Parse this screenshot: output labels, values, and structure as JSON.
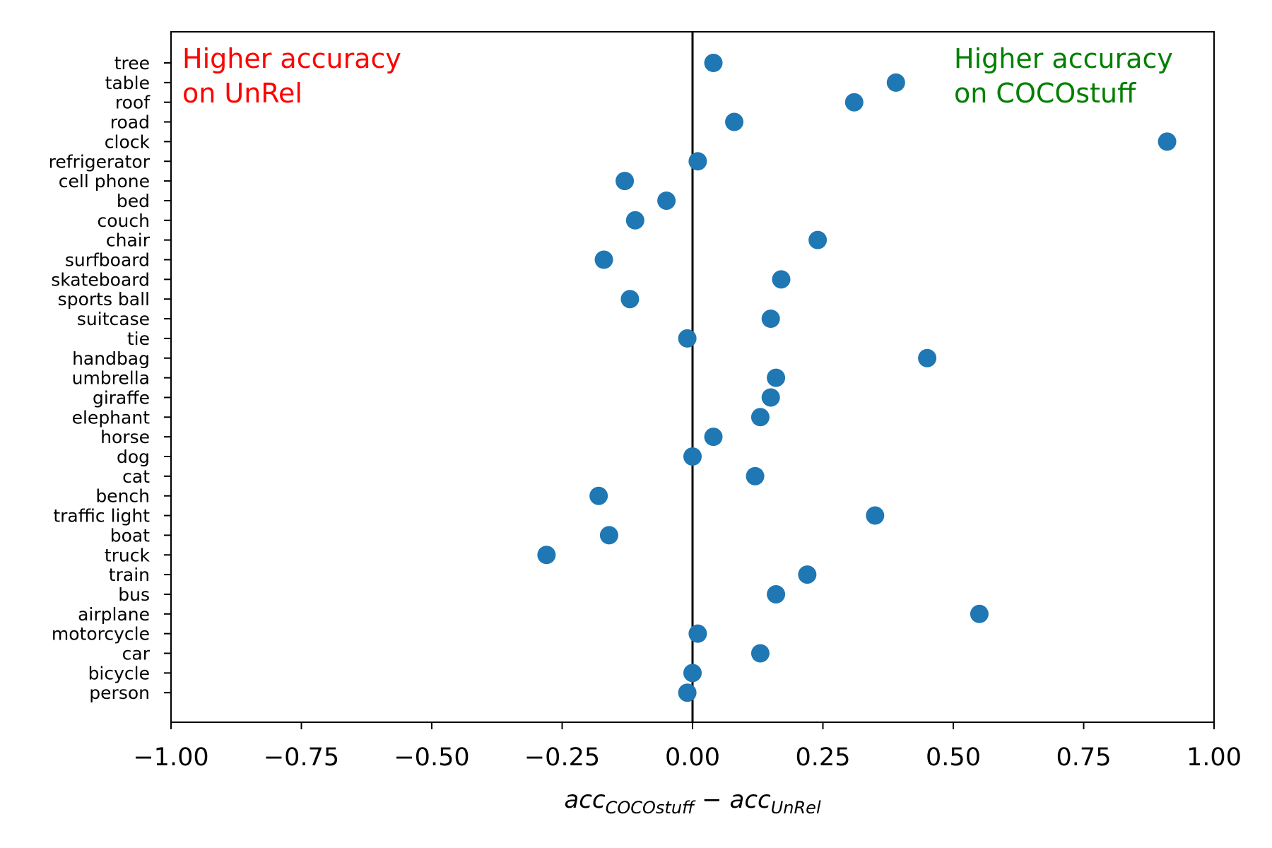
{
  "chart_data": {
    "type": "scatter",
    "categories": [
      "tree",
      "table",
      "roof",
      "road",
      "clock",
      "refrigerator",
      "cell phone",
      "bed",
      "couch",
      "chair",
      "surfboard",
      "skateboard",
      "sports ball",
      "suitcase",
      "tie",
      "handbag",
      "umbrella",
      "giraffe",
      "elephant",
      "horse",
      "dog",
      "cat",
      "bench",
      "traffic light",
      "boat",
      "truck",
      "train",
      "bus",
      "airplane",
      "motorcycle",
      "car",
      "bicycle",
      "person"
    ],
    "values": [
      0.04,
      0.39,
      0.31,
      0.08,
      0.91,
      0.01,
      -0.13,
      -0.05,
      -0.11,
      0.24,
      -0.17,
      0.17,
      -0.12,
      0.15,
      -0.01,
      0.45,
      0.16,
      0.15,
      0.13,
      0.04,
      0.0,
      0.12,
      -0.18,
      0.35,
      -0.16,
      -0.28,
      0.22,
      0.16,
      0.55,
      0.01,
      0.13,
      0.0,
      -0.01
    ],
    "xlim": [
      -1.0,
      1.0
    ],
    "xticks": [
      "−1.00",
      "−0.75",
      "−0.50",
      "−0.25",
      "0.00",
      "0.25",
      "0.50",
      "0.75",
      "1.00"
    ],
    "xtick_values": [
      -1.0,
      -0.75,
      -0.5,
      -0.25,
      0.0,
      0.25,
      0.5,
      0.75,
      1.0
    ],
    "xlabel": {
      "acc1": "acc",
      "sub1": "COCOstuff",
      "minus": " − ",
      "acc2": "acc",
      "sub2": "UnRel"
    },
    "ylabel": "",
    "title": "",
    "vline_at": 0.0,
    "grid": false,
    "annotations": {
      "left_line1": "Higher accuracy",
      "left_line2": "on UnRel",
      "right_line1": "Higher accuracy",
      "right_line2": "on COCOstuff"
    },
    "colors": {
      "points": "#1f77b4",
      "left_annotation": "#ff0000",
      "right_annotation": "#008000",
      "axes": "#000000"
    }
  }
}
